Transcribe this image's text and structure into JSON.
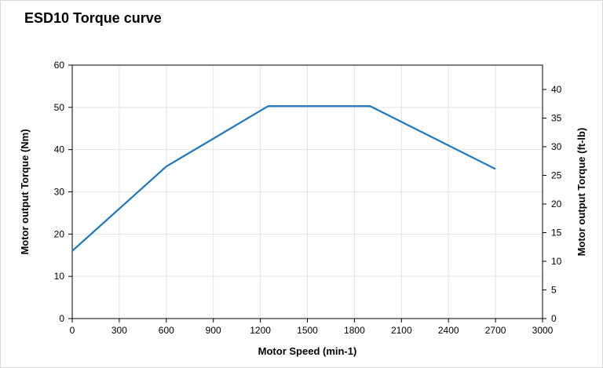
{
  "title": "ESD10 Torque curve",
  "chart_data": {
    "type": "line",
    "title": "ESD10 Torque curve",
    "xlabel": "Motor Speed (min-1)",
    "ylabel": "Motor output Torque (Nm)",
    "y2label": "Motor output Torque (ft-lb)",
    "xlim": [
      0,
      3000
    ],
    "ylim": [
      0,
      60
    ],
    "y2lim": [
      0,
      44.25
    ],
    "x_ticks": [
      "0",
      "300",
      "600",
      "900",
      "1200",
      "1500",
      "1800",
      "2100",
      "2400",
      "2700",
      "3000"
    ],
    "y_ticks": [
      "0",
      "10",
      "20",
      "30",
      "40",
      "50",
      "60"
    ],
    "y2_ticks": [
      "0",
      "5",
      "10",
      "15",
      "20",
      "25",
      "30",
      "35",
      "40"
    ],
    "grid": true,
    "series": [
      {
        "color": "#1f77c0",
        "x": [
          0,
          600,
          1250,
          1900,
          2700
        ],
        "y": [
          16,
          36,
          50.3,
          50.3,
          35.4
        ]
      }
    ]
  }
}
